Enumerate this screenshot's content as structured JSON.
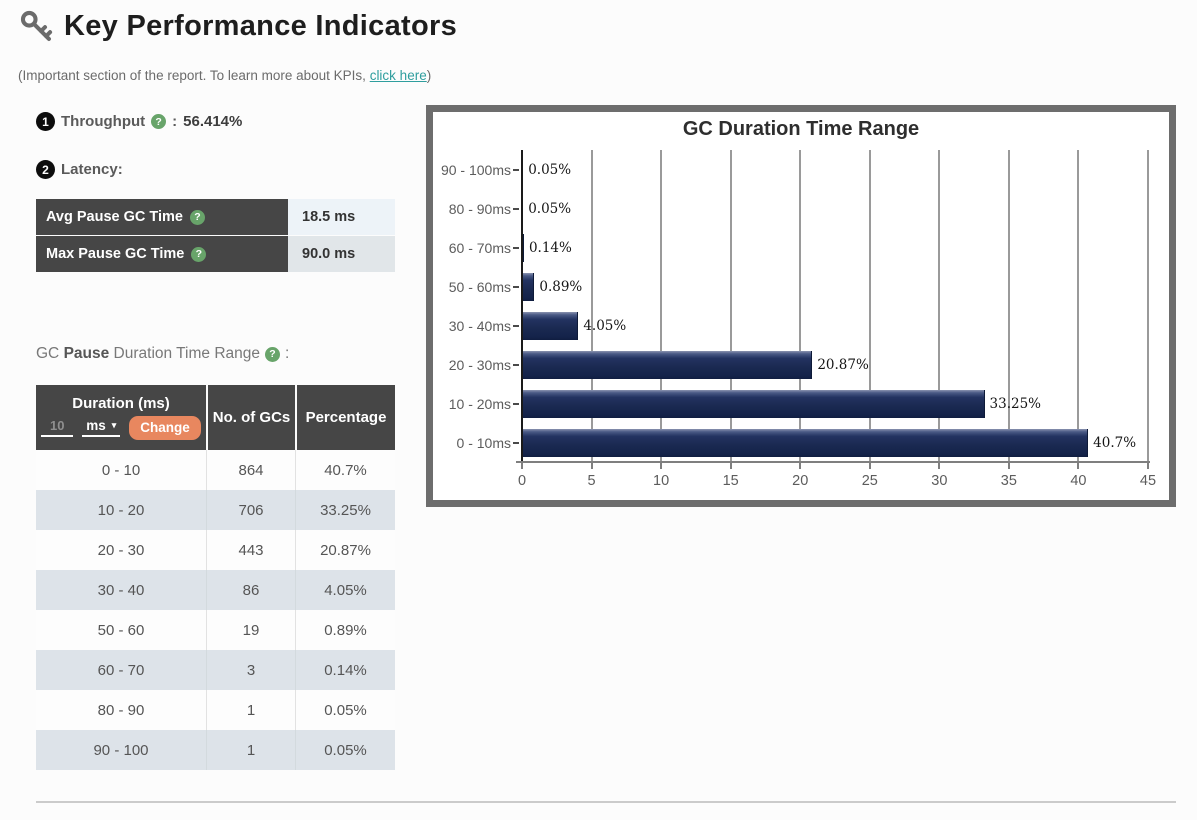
{
  "page": {
    "title": "Key Performance Indicators",
    "subtitle_prefix": "(Important section of the report. To learn more about KPIs, ",
    "subtitle_link": "click here",
    "subtitle_suffix": ")"
  },
  "icons": {
    "help_glyph": "?",
    "dropdown_arrow": "▾"
  },
  "kpis": {
    "throughput": {
      "number": "1",
      "label": "Throughput",
      "separator": ":",
      "value": "56.414%"
    },
    "latency": {
      "number": "2",
      "label": "Latency:"
    }
  },
  "latency_table": {
    "rows": [
      {
        "label": "Avg Pause GC Time",
        "value": "18.5 ms"
      },
      {
        "label": "Max Pause GC Time",
        "value": "90.0 ms"
      }
    ]
  },
  "pause_heading": {
    "prefix": "GC ",
    "bold": "Pause",
    "suffix": " Duration Time Range",
    "colon": ":"
  },
  "duration_table": {
    "header": {
      "col1": "Duration (ms)",
      "col2": "No. of GCs",
      "col3": "Percentage",
      "input_value": "10",
      "unit_label": "ms",
      "change_button": "Change"
    },
    "rows": [
      [
        "0 - 10",
        "864",
        "40.7%"
      ],
      [
        "10 - 20",
        "706",
        "33.25%"
      ],
      [
        "20 - 30",
        "443",
        "20.87%"
      ],
      [
        "30 - 40",
        "86",
        "4.05%"
      ],
      [
        "50 - 60",
        "19",
        "0.89%"
      ],
      [
        "60 - 70",
        "3",
        "0.14%"
      ],
      [
        "80 - 90",
        "1",
        "0.05%"
      ],
      [
        "90 - 100",
        "1",
        "0.05%"
      ]
    ]
  },
  "chart_data": {
    "type": "bar",
    "orientation": "horizontal",
    "title": "GC Duration Time Range",
    "categories": [
      "90 - 100ms",
      "80 - 90ms",
      "60 - 70ms",
      "50 - 60ms",
      "30 - 40ms",
      "20 - 30ms",
      "10 - 20ms",
      "0 - 10ms"
    ],
    "values": [
      0.05,
      0.05,
      0.14,
      0.89,
      4.05,
      20.87,
      33.25,
      40.7
    ],
    "labels": [
      "0.05%",
      "0.05%",
      "0.14%",
      "0.89%",
      "4.05%",
      "20.87%",
      "33.25%",
      "40.7%"
    ],
    "xlabel": "",
    "ylabel": "",
    "xlim": [
      0,
      45
    ],
    "x_ticks": [
      0,
      5,
      10,
      15,
      20,
      25,
      30,
      35,
      40,
      45
    ],
    "grid": true,
    "legend": false,
    "bar_color": "#1b2a52"
  },
  "colors": {
    "accent_link": "#2f9e9e",
    "help_green": "#68a46a",
    "header_dark": "#464646",
    "button_orange": "#e8875f",
    "bar_navy": "#1b2a52",
    "chart_frame": "#6d6d6d",
    "row_alt": "#dde3e9"
  }
}
